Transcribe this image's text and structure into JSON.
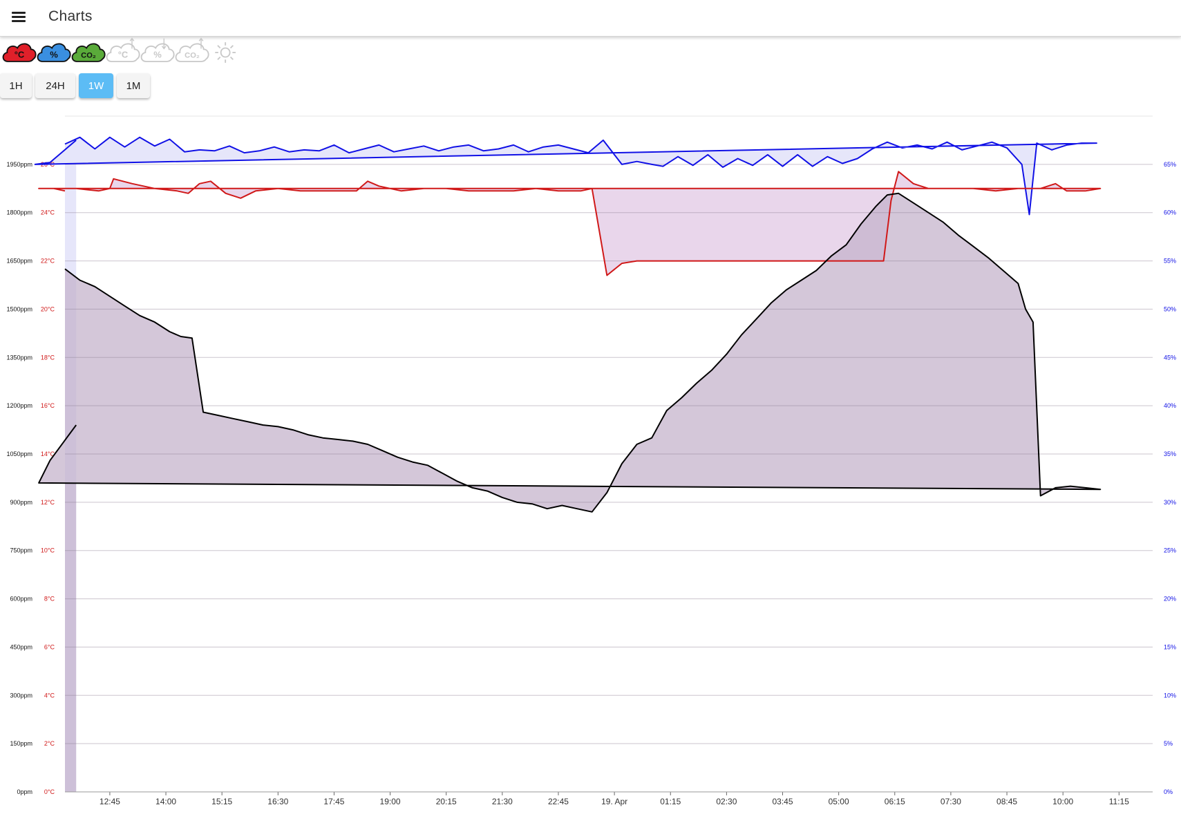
{
  "app": {
    "title": "Charts"
  },
  "toolbar": {
    "sensor_icons": [
      {
        "name": "temperature-icon",
        "label": "°C",
        "color": "#e0202a",
        "active": true
      },
      {
        "name": "humidity-icon",
        "label": "%",
        "color": "#3a8fe0",
        "active": true
      },
      {
        "name": "co2-icon",
        "label": "CO₂",
        "color": "#5aab3a",
        "active": true
      },
      {
        "name": "temperature-trend-icon",
        "label": "°C",
        "color": "#c8c8c8",
        "active": false
      },
      {
        "name": "humidity-trend-icon",
        "label": "%",
        "color": "#c8c8c8",
        "active": false
      },
      {
        "name": "co2-trend-icon",
        "label": "CO₂",
        "color": "#c8c8c8",
        "active": false
      },
      {
        "name": "light-icon",
        "label": "",
        "color": "#c8c8c8",
        "active": false
      }
    ],
    "ranges": [
      {
        "label": "1H",
        "active": false
      },
      {
        "label": "24H",
        "active": false
      },
      {
        "label": "1W",
        "active": true
      },
      {
        "label": "1M",
        "active": false
      }
    ]
  },
  "colors": {
    "temperature": "#d01818",
    "humidity": "#1010e6",
    "co2": "#000000",
    "button_active": "#5cbcf5"
  },
  "chart_data": {
    "type": "line",
    "title": "",
    "xlabel": "",
    "ylabel": "",
    "x_ticks": [
      "12:45",
      "14:00",
      "15:15",
      "16:30",
      "17:45",
      "19:00",
      "20:15",
      "21:30",
      "22:45",
      "19. Apr",
      "01:15",
      "02:30",
      "03:45",
      "05:00",
      "06:15",
      "07:30",
      "08:45",
      "10:00",
      "11:15"
    ],
    "x_time_range": [
      "18. Apr 11:45",
      "19. Apr 12:00"
    ],
    "axes": {
      "co2": {
        "unit": "ppm",
        "range": [
          0,
          2100
        ],
        "ticks": [
          "0ppm",
          "150ppm",
          "300ppm",
          "450ppm",
          "600ppm",
          "750ppm",
          "900ppm",
          "1050ppm",
          "1200ppm",
          "1350ppm",
          "1500ppm",
          "1650ppm",
          "1800ppm",
          "1950ppm"
        ]
      },
      "temperature": {
        "unit": "°C",
        "range": [
          0,
          28
        ],
        "ticks": [
          "0°C",
          "2°C",
          "4°C",
          "6°C",
          "8°C",
          "10°C",
          "12°C",
          "14°C",
          "16°C",
          "18°C",
          "20°C",
          "22°C",
          "24°C",
          "26°C"
        ]
      },
      "humidity": {
        "unit": "%",
        "range": [
          0,
          70
        ],
        "ticks": [
          "0%",
          "5%",
          "10%",
          "15%",
          "20%",
          "25%",
          "30%",
          "35%",
          "40%",
          "45%",
          "50%",
          "55%",
          "60%",
          "65%"
        ]
      }
    },
    "grid": true,
    "series": [
      {
        "key": "humidity",
        "axis": "humidity",
        "fill": "#dcdcf8",
        "points": [
          [
            "11:45",
            67.1
          ],
          [
            "12:05",
            67.8
          ],
          [
            "12:25",
            66.6
          ],
          [
            "12:45",
            67.8
          ],
          [
            "13:05",
            66.8
          ],
          [
            "13:25",
            67.8
          ],
          [
            "13:45",
            66.9
          ],
          [
            "14:05",
            67.6
          ],
          [
            "14:25",
            66.3
          ],
          [
            "14:45",
            66.5
          ],
          [
            "15:05",
            66.4
          ],
          [
            "15:25",
            66.9
          ],
          [
            "15:45",
            66.2
          ],
          [
            "16:05",
            66.4
          ],
          [
            "16:25",
            66.8
          ],
          [
            "16:45",
            66.3
          ],
          [
            "17:05",
            66.5
          ],
          [
            "17:25",
            66.4
          ],
          [
            "17:45",
            67.0
          ],
          [
            "18:05",
            66.2
          ],
          [
            "18:25",
            66.6
          ],
          [
            "18:45",
            67.0
          ],
          [
            "19:05",
            66.3
          ],
          [
            "19:25",
            66.6
          ],
          [
            "19:45",
            66.9
          ],
          [
            "20:05",
            66.4
          ],
          [
            "20:25",
            66.8
          ],
          [
            "20:45",
            67.0
          ],
          [
            "21:05",
            66.4
          ],
          [
            "21:25",
            66.6
          ],
          [
            "21:45",
            67.0
          ],
          [
            "22:05",
            66.3
          ],
          [
            "22:25",
            66.8
          ],
          [
            "22:45",
            67.0
          ],
          [
            "23:05",
            66.6
          ],
          [
            "23:25",
            66.2
          ],
          [
            "23:45",
            67.5
          ],
          [
            "00:10",
            65.0
          ],
          [
            "00:30",
            65.3
          ],
          [
            "00:50",
            65.0
          ],
          [
            "01:05",
            64.8
          ],
          [
            "01:25",
            65.8
          ],
          [
            "01:45",
            64.9
          ],
          [
            "02:05",
            66.0
          ],
          [
            "02:25",
            64.7
          ],
          [
            "02:45",
            65.6
          ],
          [
            "03:05",
            64.9
          ],
          [
            "03:25",
            66.0
          ],
          [
            "03:45",
            64.8
          ],
          [
            "04:05",
            66.0
          ],
          [
            "04:25",
            64.8
          ],
          [
            "04:45",
            65.8
          ],
          [
            "05:05",
            65.1
          ],
          [
            "05:25",
            65.6
          ],
          [
            "05:45",
            66.6
          ],
          [
            "06:05",
            67.3
          ],
          [
            "06:25",
            66.7
          ],
          [
            "06:45",
            67.0
          ],
          [
            "07:05",
            66.6
          ],
          [
            "07:25",
            67.3
          ],
          [
            "07:45",
            66.5
          ],
          [
            "08:05",
            66.9
          ],
          [
            "08:25",
            67.3
          ],
          [
            "08:45",
            66.7
          ],
          [
            "09:05",
            65.0
          ],
          [
            "09:15",
            59.8
          ],
          [
            "09:25",
            67.2
          ],
          [
            "09:45",
            66.5
          ],
          [
            "10:05",
            67.0
          ],
          [
            "10:25",
            67.2
          ],
          [
            "10:45",
            67.2
          ],
          [
            "11:05",
            65.0
          ],
          [
            "11:25",
            65.2
          ],
          [
            "12:00",
            67.5
          ]
        ]
      },
      {
        "key": "temperature",
        "axis": "temperature",
        "fill": "#e1c6e3",
        "points": [
          [
            "11:45",
            25.0
          ],
          [
            "12:00",
            25.0
          ],
          [
            "12:30",
            24.9
          ],
          [
            "12:45",
            25.0
          ],
          [
            "12:50",
            25.4
          ],
          [
            "13:15",
            25.2
          ],
          [
            "13:45",
            25.0
          ],
          [
            "14:15",
            24.9
          ],
          [
            "14:30",
            24.8
          ],
          [
            "14:45",
            25.2
          ],
          [
            "15:00",
            25.3
          ],
          [
            "15:20",
            24.8
          ],
          [
            "15:40",
            24.6
          ],
          [
            "16:00",
            24.9
          ],
          [
            "16:30",
            25.0
          ],
          [
            "17:00",
            24.9
          ],
          [
            "17:30",
            24.9
          ],
          [
            "18:15",
            24.9
          ],
          [
            "18:30",
            25.3
          ],
          [
            "18:45",
            25.1
          ],
          [
            "19:15",
            24.9
          ],
          [
            "19:45",
            25.0
          ],
          [
            "20:15",
            25.0
          ],
          [
            "20:45",
            24.9
          ],
          [
            "21:15",
            24.9
          ],
          [
            "21:45",
            24.9
          ],
          [
            "22:15",
            25.0
          ],
          [
            "22:45",
            24.9
          ],
          [
            "23:15",
            24.9
          ],
          [
            "23:30",
            25.0
          ],
          [
            "23:50",
            21.4
          ],
          [
            "00:10",
            21.9
          ],
          [
            "00:30",
            22.0
          ],
          [
            "01:00",
            22.0
          ],
          [
            "01:30",
            22.0
          ],
          [
            "02:00",
            22.0
          ],
          [
            "02:30",
            22.0
          ],
          [
            "03:00",
            22.0
          ],
          [
            "03:30",
            22.0
          ],
          [
            "04:00",
            22.0
          ],
          [
            "04:30",
            22.0
          ],
          [
            "05:00",
            22.0
          ],
          [
            "05:30",
            22.0
          ],
          [
            "06:00",
            22.0
          ],
          [
            "06:10",
            24.5
          ],
          [
            "06:20",
            25.7
          ],
          [
            "06:40",
            25.2
          ],
          [
            "07:00",
            25.0
          ],
          [
            "07:30",
            25.0
          ],
          [
            "08:00",
            25.0
          ],
          [
            "08:30",
            24.9
          ],
          [
            "09:00",
            25.0
          ],
          [
            "09:30",
            25.0
          ],
          [
            "09:50",
            25.2
          ],
          [
            "10:05",
            24.9
          ],
          [
            "10:30",
            24.9
          ],
          [
            "10:50",
            25.0
          ],
          [
            "11:10",
            25.0
          ],
          [
            "11:30",
            25.0
          ],
          [
            "11:45",
            24.9
          ]
        ]
      },
      {
        "key": "co2",
        "axis": "co2",
        "fill": "#c3b1ca",
        "points": [
          [
            "11:45",
            1625
          ],
          [
            "12:05",
            1590
          ],
          [
            "12:25",
            1570
          ],
          [
            "12:45",
            1540
          ],
          [
            "13:05",
            1510
          ],
          [
            "13:25",
            1480
          ],
          [
            "13:45",
            1460
          ],
          [
            "14:05",
            1430
          ],
          [
            "14:20",
            1415
          ],
          [
            "14:35",
            1410
          ],
          [
            "14:50",
            1180
          ],
          [
            "15:10",
            1170
          ],
          [
            "15:30",
            1160
          ],
          [
            "15:50",
            1150
          ],
          [
            "16:10",
            1140
          ],
          [
            "16:30",
            1135
          ],
          [
            "16:50",
            1125
          ],
          [
            "17:10",
            1110
          ],
          [
            "17:30",
            1100
          ],
          [
            "17:50",
            1095
          ],
          [
            "18:10",
            1090
          ],
          [
            "18:30",
            1080
          ],
          [
            "18:50",
            1060
          ],
          [
            "19:10",
            1040
          ],
          [
            "19:30",
            1025
          ],
          [
            "19:50",
            1015
          ],
          [
            "20:10",
            990
          ],
          [
            "20:30",
            965
          ],
          [
            "20:50",
            945
          ],
          [
            "21:10",
            935
          ],
          [
            "21:30",
            915
          ],
          [
            "21:50",
            900
          ],
          [
            "22:10",
            895
          ],
          [
            "22:30",
            880
          ],
          [
            "22:50",
            890
          ],
          [
            "23:10",
            880
          ],
          [
            "23:30",
            870
          ],
          [
            "23:50",
            930
          ],
          [
            "00:10",
            1020
          ],
          [
            "00:30",
            1080
          ],
          [
            "00:50",
            1100
          ],
          [
            "01:10",
            1185
          ],
          [
            "01:30",
            1225
          ],
          [
            "01:50",
            1270
          ],
          [
            "02:10",
            1310
          ],
          [
            "02:30",
            1360
          ],
          [
            "02:50",
            1420
          ],
          [
            "03:10",
            1470
          ],
          [
            "03:30",
            1520
          ],
          [
            "03:50",
            1560
          ],
          [
            "04:10",
            1590
          ],
          [
            "04:30",
            1620
          ],
          [
            "04:50",
            1665
          ],
          [
            "05:10",
            1700
          ],
          [
            "05:30",
            1765
          ],
          [
            "05:50",
            1820
          ],
          [
            "06:05",
            1855
          ],
          [
            "06:20",
            1860
          ],
          [
            "06:40",
            1830
          ],
          [
            "07:00",
            1800
          ],
          [
            "07:20",
            1770
          ],
          [
            "07:40",
            1730
          ],
          [
            "08:00",
            1695
          ],
          [
            "08:20",
            1660
          ],
          [
            "08:40",
            1620
          ],
          [
            "09:00",
            1580
          ],
          [
            "09:10",
            1500
          ],
          [
            "09:20",
            1460
          ],
          [
            "09:30",
            920
          ],
          [
            "09:50",
            945
          ],
          [
            "10:10",
            950
          ],
          [
            "10:30",
            945
          ],
          [
            "10:50",
            940
          ],
          [
            "11:10",
            960
          ],
          [
            "11:25",
            1030
          ],
          [
            "12:00",
            1140
          ]
        ]
      }
    ]
  }
}
